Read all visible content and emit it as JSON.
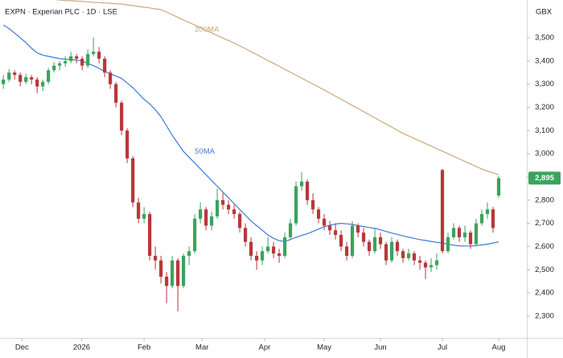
{
  "chart_data": {
    "type": "candlestick",
    "title": "EXPN · Experian PLC · 1D · LSE",
    "currency": "GBX",
    "up_color": "#3ba35e",
    "down_color": "#b8373a",
    "ylim": [
      2206,
      3663
    ],
    "yticks": [
      {
        "value": 2300,
        "label": "2,300"
      },
      {
        "value": 2400,
        "label": "2,400"
      },
      {
        "value": 2500,
        "label": "2,500"
      },
      {
        "value": 2600,
        "label": "2,600"
      },
      {
        "value": 2700,
        "label": "2,700"
      },
      {
        "value": 2800,
        "label": "2,800"
      },
      {
        "value": 2900,
        "label": "2,900"
      },
      {
        "value": 3000,
        "label": "3,000"
      },
      {
        "value": 3100,
        "label": "3,100"
      },
      {
        "value": 3200,
        "label": "3,200"
      },
      {
        "value": 3300,
        "label": "3,300"
      },
      {
        "value": 3400,
        "label": "3,400"
      },
      {
        "value": 3500,
        "label": "3,500"
      }
    ],
    "xlim": [
      -0.6,
      93
    ],
    "xticks": [
      {
        "value": 3.3,
        "label": "Dec"
      },
      {
        "value": 13.9,
        "label": "2026"
      },
      {
        "value": 25,
        "label": "Feb"
      },
      {
        "value": 35.3,
        "label": "Mar"
      },
      {
        "value": 46.4,
        "label": "Apr"
      },
      {
        "value": 57,
        "label": "May"
      },
      {
        "value": 67,
        "label": "Jun"
      },
      {
        "value": 78,
        "label": "Jul"
      },
      {
        "value": 88,
        "label": "Aug"
      }
    ],
    "last_price": {
      "value": 2895,
      "label": "2,895"
    },
    "ohlc": [
      [
        3300,
        3340,
        3280,
        3320
      ],
      [
        3320,
        3365,
        3310,
        3350
      ],
      [
        3350,
        3360,
        3320,
        3340
      ],
      [
        3340,
        3350,
        3290,
        3310
      ],
      [
        3310,
        3345,
        3300,
        3330
      ],
      [
        3330,
        3340,
        3300,
        3320
      ],
      [
        3320,
        3330,
        3260,
        3290
      ],
      [
        3290,
        3320,
        3270,
        3310
      ],
      [
        3310,
        3370,
        3300,
        3360
      ],
      [
        3360,
        3395,
        3350,
        3380
      ],
      [
        3380,
        3400,
        3360,
        3390
      ],
      [
        3390,
        3420,
        3375,
        3400
      ],
      [
        3400,
        3440,
        3390,
        3420
      ],
      [
        3420,
        3430,
        3390,
        3410
      ],
      [
        3410,
        3420,
        3360,
        3380
      ],
      [
        3380,
        3450,
        3370,
        3430
      ],
      [
        3430,
        3500,
        3420,
        3440
      ],
      [
        3440,
        3460,
        3390,
        3410
      ],
      [
        3410,
        3420,
        3330,
        3350
      ],
      [
        3350,
        3360,
        3280,
        3300
      ],
      [
        3300,
        3310,
        3200,
        3220
      ],
      [
        3220,
        3230,
        3080,
        3100
      ],
      [
        3100,
        3110,
        2960,
        2980
      ],
      [
        2980,
        2990,
        2770,
        2790
      ],
      [
        2790,
        2810,
        2700,
        2720
      ],
      [
        2720,
        2770,
        2700,
        2740
      ],
      [
        2740,
        2750,
        2540,
        2560
      ],
      [
        2560,
        2600,
        2500,
        2540
      ],
      [
        2540,
        2560,
        2440,
        2470
      ],
      [
        2470,
        2490,
        2355,
        2430
      ],
      [
        2430,
        2560,
        2420,
        2540
      ],
      [
        2540,
        2550,
        2320,
        2430
      ],
      [
        2430,
        2570,
        2420,
        2560
      ],
      [
        2560,
        2600,
        2520,
        2580
      ],
      [
        2580,
        2740,
        2570,
        2720
      ],
      [
        2720,
        2790,
        2700,
        2760
      ],
      [
        2760,
        2770,
        2670,
        2690
      ],
      [
        2690,
        2750,
        2670,
        2730
      ],
      [
        2730,
        2850,
        2720,
        2800
      ],
      [
        2800,
        2830,
        2760,
        2780
      ],
      [
        2780,
        2800,
        2740,
        2760
      ],
      [
        2760,
        2780,
        2720,
        2740
      ],
      [
        2740,
        2750,
        2660,
        2680
      ],
      [
        2680,
        2700,
        2600,
        2620
      ],
      [
        2620,
        2640,
        2540,
        2560
      ],
      [
        2560,
        2580,
        2500,
        2540
      ],
      [
        2540,
        2600,
        2520,
        2580
      ],
      [
        2580,
        2640,
        2570,
        2600
      ],
      [
        2600,
        2620,
        2550,
        2570
      ],
      [
        2570,
        2590,
        2530,
        2560
      ],
      [
        2560,
        2660,
        2550,
        2640
      ],
      [
        2640,
        2720,
        2630,
        2700
      ],
      [
        2700,
        2880,
        2690,
        2860
      ],
      [
        2860,
        2920,
        2840,
        2880
      ],
      [
        2880,
        2890,
        2780,
        2800
      ],
      [
        2800,
        2830,
        2740,
        2760
      ],
      [
        2760,
        2770,
        2700,
        2720
      ],
      [
        2720,
        2740,
        2670,
        2690
      ],
      [
        2690,
        2710,
        2650,
        2670
      ],
      [
        2670,
        2700,
        2630,
        2650
      ],
      [
        2650,
        2670,
        2580,
        2600
      ],
      [
        2600,
        2620,
        2540,
        2560
      ],
      [
        2560,
        2710,
        2550,
        2690
      ],
      [
        2690,
        2700,
        2640,
        2660
      ],
      [
        2660,
        2680,
        2600,
        2620
      ],
      [
        2620,
        2630,
        2560,
        2580
      ],
      [
        2580,
        2680,
        2570,
        2640
      ],
      [
        2640,
        2660,
        2590,
        2610
      ],
      [
        2610,
        2620,
        2520,
        2540
      ],
      [
        2540,
        2640,
        2530,
        2620
      ],
      [
        2620,
        2630,
        2560,
        2580
      ],
      [
        2580,
        2590,
        2530,
        2550
      ],
      [
        2550,
        2590,
        2540,
        2570
      ],
      [
        2570,
        2580,
        2520,
        2540
      ],
      [
        2540,
        2560,
        2500,
        2530
      ],
      [
        2530,
        2540,
        2460,
        2510
      ],
      [
        2510,
        2550,
        2490,
        2520
      ],
      [
        2520,
        2570,
        2500,
        2540
      ],
      [
        2930,
        2935,
        2570,
        2580
      ],
      [
        2580,
        2660,
        2570,
        2640
      ],
      [
        2640,
        2700,
        2630,
        2680
      ],
      [
        2680,
        2690,
        2620,
        2640
      ],
      [
        2640,
        2690,
        2620,
        2660
      ],
      [
        2660,
        2670,
        2590,
        2610
      ],
      [
        2610,
        2720,
        2600,
        2700
      ],
      [
        2700,
        2760,
        2690,
        2740
      ],
      [
        2740,
        2790,
        2720,
        2760
      ],
      [
        2760,
        2770,
        2660,
        2680
      ],
      [
        2820,
        2905,
        2810,
        2895
      ]
    ],
    "series": [
      {
        "name": "50MA",
        "color": "#3f7bd6",
        "values": [
          3555,
          3540,
          3520,
          3500,
          3480,
          3455,
          3435,
          3425,
          3420,
          3415,
          3410,
          3408,
          3406,
          3404,
          3400,
          3390,
          3380,
          3368,
          3355,
          3345,
          3335,
          3325,
          3305,
          3285,
          3260,
          3235,
          3215,
          3190,
          3160,
          3120,
          3080,
          3045,
          3010,
          2985,
          2960,
          2935,
          2910,
          2885,
          2860,
          2835,
          2810,
          2785,
          2760,
          2735,
          2710,
          2690,
          2670,
          2650,
          2635,
          2625,
          2622,
          2630,
          2640,
          2648,
          2655,
          2665,
          2675,
          2685,
          2692,
          2697,
          2700,
          2698,
          2695,
          2690,
          2686,
          2682,
          2678,
          2672,
          2665,
          2658,
          2652,
          2646,
          2640,
          2635,
          2630,
          2626,
          2622,
          2618,
          2614,
          2610,
          2606,
          2603,
          2602,
          2602,
          2604,
          2607,
          2610,
          2615,
          2620
        ]
      },
      {
        "name": "200MA",
        "color": "#c9a97c",
        "values": [
          3679,
          3677,
          3676,
          3674,
          3673,
          3671,
          3669,
          3668,
          3666,
          3665,
          3663,
          3661,
          3660,
          3658,
          3657,
          3655,
          3653,
          3652,
          3650,
          3649,
          3647,
          3646,
          3642,
          3639,
          3635,
          3632,
          3629,
          3625,
          3622,
          3611,
          3600,
          3588,
          3577,
          3566,
          3555,
          3544,
          3532,
          3521,
          3510,
          3499,
          3488,
          3477,
          3465,
          3453,
          3440,
          3428,
          3415,
          3402,
          3390,
          3377,
          3364,
          3351,
          3339,
          3326,
          3313,
          3301,
          3288,
          3275,
          3262,
          3248,
          3235,
          3222,
          3208,
          3195,
          3182,
          3168,
          3155,
          3141,
          3128,
          3115,
          3101,
          3088,
          3077,
          3066,
          3055,
          3044,
          3033,
          3022,
          3011,
          3000,
          2989,
          2978,
          2967,
          2956,
          2945,
          2934,
          2926,
          2918,
          2910
        ]
      }
    ]
  }
}
